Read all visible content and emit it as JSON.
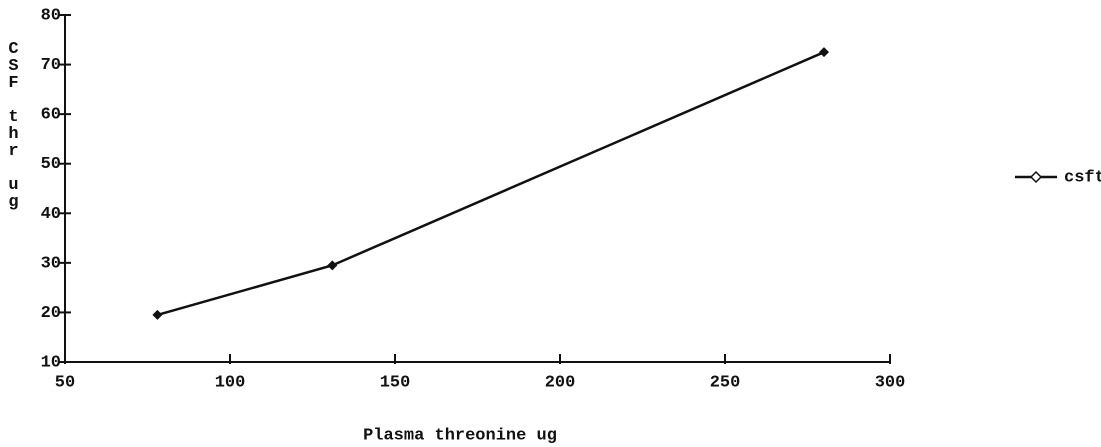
{
  "chart_data": {
    "type": "line",
    "x_label": "Plasma threonine ug",
    "y_label": "CSF thr ug",
    "x": [
      78,
      131,
      280
    ],
    "series": [
      {
        "name": "csfthav",
        "color": "#111111",
        "values": [
          19.5,
          29.5,
          72.5
        ]
      }
    ],
    "xlim": [
      50,
      300
    ],
    "xticks": [
      50,
      100,
      150,
      200,
      250,
      300
    ],
    "ylim": [
      10,
      80
    ],
    "yticks": [
      10,
      20,
      30,
      40,
      50,
      60,
      70,
      80
    ],
    "grid": false,
    "legend": "right"
  }
}
